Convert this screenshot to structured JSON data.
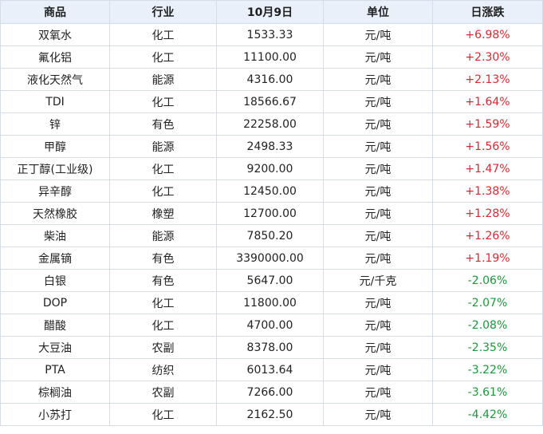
{
  "header": {
    "name": "商品",
    "industry": "行业",
    "price_date": "10月9日",
    "unit": "单位",
    "change": "日涨跌"
  },
  "colors": {
    "up": "#e0262d",
    "down": "#1a9a3a",
    "header_bg": "#e9f0f9",
    "border": "#d6dde8"
  },
  "rows": [
    {
      "name": "双氧水",
      "industry": "化工",
      "price": "1533.33",
      "unit": "元/吨",
      "change": "+6.98%",
      "trend": "up"
    },
    {
      "name": "氟化铝",
      "industry": "化工",
      "price": "11100.00",
      "unit": "元/吨",
      "change": "+2.30%",
      "trend": "up"
    },
    {
      "name": "液化天然气",
      "industry": "能源",
      "price": "4316.00",
      "unit": "元/吨",
      "change": "+2.13%",
      "trend": "up"
    },
    {
      "name": "TDI",
      "industry": "化工",
      "price": "18566.67",
      "unit": "元/吨",
      "change": "+1.64%",
      "trend": "up"
    },
    {
      "name": "锌",
      "industry": "有色",
      "price": "22258.00",
      "unit": "元/吨",
      "change": "+1.59%",
      "trend": "up"
    },
    {
      "name": "甲醇",
      "industry": "能源",
      "price": "2498.33",
      "unit": "元/吨",
      "change": "+1.56%",
      "trend": "up"
    },
    {
      "name": "正丁醇(工业级)",
      "industry": "化工",
      "price": "9200.00",
      "unit": "元/吨",
      "change": "+1.47%",
      "trend": "up"
    },
    {
      "name": "异辛醇",
      "industry": "化工",
      "price": "12450.00",
      "unit": "元/吨",
      "change": "+1.38%",
      "trend": "up"
    },
    {
      "name": "天然橡胶",
      "industry": "橡塑",
      "price": "12700.00",
      "unit": "元/吨",
      "change": "+1.28%",
      "trend": "up"
    },
    {
      "name": "柴油",
      "industry": "能源",
      "price": "7850.20",
      "unit": "元/吨",
      "change": "+1.26%",
      "trend": "up"
    },
    {
      "name": "金属镝",
      "industry": "有色",
      "price": "3390000.00",
      "unit": "元/吨",
      "change": "+1.19%",
      "trend": "up"
    },
    {
      "name": "白银",
      "industry": "有色",
      "price": "5647.00",
      "unit": "元/千克",
      "change": "-2.06%",
      "trend": "down"
    },
    {
      "name": "DOP",
      "industry": "化工",
      "price": "11800.00",
      "unit": "元/吨",
      "change": "-2.07%",
      "trend": "down"
    },
    {
      "name": "醋酸",
      "industry": "化工",
      "price": "4700.00",
      "unit": "元/吨",
      "change": "-2.08%",
      "trend": "down"
    },
    {
      "name": "大豆油",
      "industry": "农副",
      "price": "8378.00",
      "unit": "元/吨",
      "change": "-2.35%",
      "trend": "down"
    },
    {
      "name": "PTA",
      "industry": "纺织",
      "price": "6013.64",
      "unit": "元/吨",
      "change": "-3.22%",
      "trend": "down"
    },
    {
      "name": "棕榈油",
      "industry": "农副",
      "price": "7266.00",
      "unit": "元/吨",
      "change": "-3.61%",
      "trend": "down"
    },
    {
      "name": "小苏打",
      "industry": "化工",
      "price": "2162.50",
      "unit": "元/吨",
      "change": "-4.42%",
      "trend": "down"
    }
  ]
}
